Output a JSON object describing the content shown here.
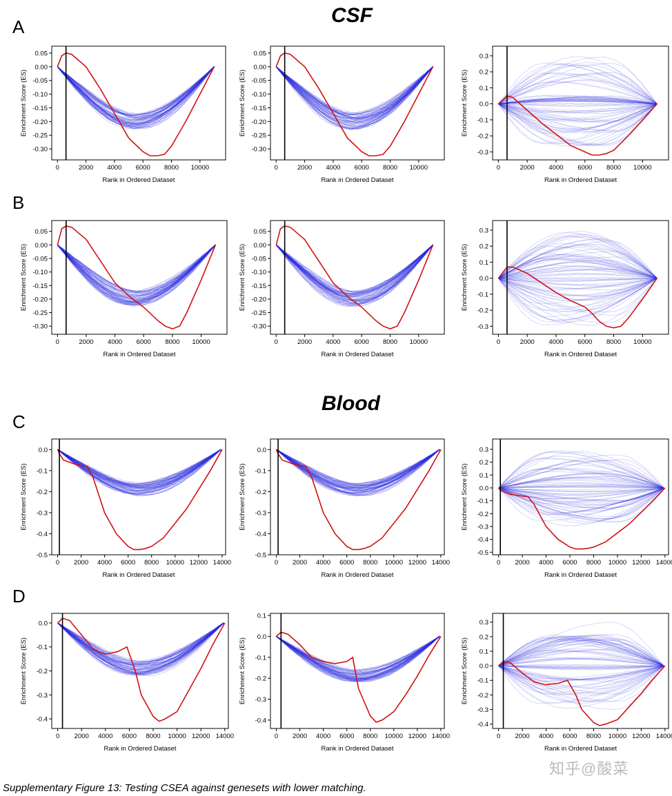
{
  "titles": {
    "csf": "CSF",
    "blood": "Blood"
  },
  "row_letters": [
    "A",
    "B",
    "C",
    "D"
  ],
  "watermark": "知乎@酸菜",
  "caption": "Supplementary Figure 13: Testing CSEA against genesets with lower matching.",
  "colors": {
    "red_line": "#d11010",
    "blue_lines": "#2a2ae0",
    "axes": "#000000"
  },
  "chart_data": [
    {
      "panel": "A1",
      "type": "line",
      "ylabel": "Enrichment Score (ES)",
      "xlabel": "Rank in Ordered Dataset",
      "xticks": [
        0,
        2000,
        4000,
        6000,
        8000,
        10000
      ],
      "yticks": [
        0.05,
        0.0,
        -0.05,
        -0.1,
        -0.15,
        -0.2,
        -0.25,
        -0.3
      ],
      "xlim": [
        -400,
        11800
      ],
      "ylim": [
        -0.34,
        0.075
      ],
      "vline_x": 600,
      "bg_trend": "down",
      "bg_count": 60,
      "series": [
        {
          "color": "red",
          "x": [
            0,
            300,
            600,
            1000,
            2000,
            3000,
            4000,
            5000,
            6000,
            6500,
            7000,
            7500,
            8000,
            9000,
            10000,
            11000
          ],
          "y": [
            0.0,
            0.04,
            0.05,
            0.045,
            0.0,
            -0.08,
            -0.17,
            -0.26,
            -0.31,
            -0.325,
            -0.325,
            -0.32,
            -0.29,
            -0.2,
            -0.1,
            0.0
          ]
        }
      ]
    },
    {
      "panel": "A2",
      "type": "line",
      "ylabel": "Enrichment Score (ES)",
      "xlabel": "Rank in Ordered Dataset",
      "xticks": [
        0,
        2000,
        4000,
        6000,
        8000,
        10000
      ],
      "yticks": [
        0.05,
        0.0,
        -0.05,
        -0.1,
        -0.15,
        -0.2,
        -0.25,
        -0.3
      ],
      "xlim": [
        -400,
        11800
      ],
      "ylim": [
        -0.34,
        0.075
      ],
      "vline_x": 600,
      "bg_trend": "down",
      "bg_count": 60,
      "series": [
        {
          "color": "red",
          "x": [
            0,
            300,
            600,
            1000,
            2000,
            3000,
            4000,
            5000,
            6000,
            6500,
            7000,
            7500,
            8000,
            9000,
            10000,
            11000
          ],
          "y": [
            0.0,
            0.04,
            0.05,
            0.045,
            0.0,
            -0.08,
            -0.17,
            -0.26,
            -0.31,
            -0.325,
            -0.325,
            -0.32,
            -0.29,
            -0.2,
            -0.1,
            0.0
          ]
        }
      ]
    },
    {
      "panel": "A3",
      "type": "line",
      "ylabel": "Enrichment Score (ES)",
      "xlabel": "Rank in Ordered Dataset",
      "xticks": [
        0,
        2000,
        4000,
        6000,
        8000,
        10000
      ],
      "yticks": [
        0.3,
        0.2,
        0.1,
        0.0,
        -0.1,
        -0.2,
        -0.3
      ],
      "xlim": [
        -400,
        11800
      ],
      "ylim": [
        -0.35,
        0.36
      ],
      "vline_x": 600,
      "bg_trend": "mixed",
      "bg_count": 80,
      "series": [
        {
          "color": "red",
          "x": [
            0,
            600,
            1000,
            2000,
            3000,
            4000,
            5000,
            6000,
            6500,
            7000,
            7500,
            8000,
            9000,
            10000,
            11000
          ],
          "y": [
            0.0,
            0.05,
            0.04,
            -0.04,
            -0.12,
            -0.19,
            -0.26,
            -0.3,
            -0.32,
            -0.32,
            -0.31,
            -0.29,
            -0.2,
            -0.1,
            0.0
          ]
        }
      ]
    },
    {
      "panel": "B1",
      "type": "line",
      "ylabel": "Enrichment Score (ES)",
      "xlabel": "Rank in Ordered Dataset",
      "xticks": [
        0,
        2000,
        4000,
        6000,
        8000,
        10000
      ],
      "yticks": [
        0.05,
        0.0,
        -0.05,
        -0.1,
        -0.15,
        -0.2,
        -0.25,
        -0.3
      ],
      "xlim": [
        -400,
        11800
      ],
      "ylim": [
        -0.33,
        0.09
      ],
      "vline_x": 600,
      "bg_trend": "down",
      "bg_count": 60,
      "series": [
        {
          "color": "red",
          "x": [
            0,
            300,
            600,
            1000,
            2000,
            3000,
            4000,
            5000,
            6000,
            7000,
            7500,
            8000,
            8500,
            9000,
            10000,
            11000
          ],
          "y": [
            0.0,
            0.06,
            0.07,
            0.065,
            0.02,
            -0.06,
            -0.14,
            -0.19,
            -0.23,
            -0.28,
            -0.3,
            -0.31,
            -0.3,
            -0.25,
            -0.13,
            0.0
          ]
        }
      ]
    },
    {
      "panel": "B2",
      "type": "line",
      "ylabel": "Enrichment Score (ES)",
      "xlabel": "Rank in Ordered Dataset",
      "xticks": [
        0,
        2000,
        4000,
        6000,
        8000,
        10000
      ],
      "yticks": [
        0.05,
        0.0,
        -0.05,
        -0.1,
        -0.15,
        -0.2,
        -0.25,
        -0.3
      ],
      "xlim": [
        -400,
        11800
      ],
      "ylim": [
        -0.33,
        0.09
      ],
      "vline_x": 600,
      "bg_trend": "down",
      "bg_count": 60,
      "series": [
        {
          "color": "red",
          "x": [
            0,
            300,
            600,
            1000,
            2000,
            3000,
            4000,
            5000,
            6000,
            7000,
            7500,
            8000,
            8500,
            9000,
            10000,
            11000
          ],
          "y": [
            0.0,
            0.06,
            0.07,
            0.065,
            0.02,
            -0.06,
            -0.14,
            -0.19,
            -0.23,
            -0.28,
            -0.3,
            -0.31,
            -0.3,
            -0.25,
            -0.13,
            0.0
          ]
        }
      ]
    },
    {
      "panel": "B3",
      "type": "line",
      "ylabel": "Enrichment Score (ES)",
      "xlabel": "Rank in Ordered Dataset",
      "xticks": [
        0,
        2000,
        4000,
        6000,
        8000,
        10000
      ],
      "yticks": [
        0.3,
        0.2,
        0.1,
        0.0,
        -0.1,
        -0.2,
        -0.3
      ],
      "xlim": [
        -400,
        11800
      ],
      "ylim": [
        -0.35,
        0.36
      ],
      "vline_x": 600,
      "bg_trend": "mixed",
      "bg_count": 80,
      "series": [
        {
          "color": "red",
          "x": [
            0,
            600,
            1000,
            2000,
            3000,
            4000,
            5000,
            6000,
            6500,
            7000,
            7500,
            8000,
            8500,
            9000,
            10000,
            11000
          ],
          "y": [
            0.0,
            0.07,
            0.07,
            0.03,
            -0.03,
            -0.09,
            -0.14,
            -0.18,
            -0.22,
            -0.27,
            -0.3,
            -0.31,
            -0.3,
            -0.25,
            -0.13,
            0.0
          ]
        }
      ]
    },
    {
      "panel": "C1",
      "type": "line",
      "ylabel": "Enrichment Score (ES)",
      "xlabel": "Rank in Ordered Dataset",
      "xticks": [
        0,
        2000,
        4000,
        6000,
        8000,
        10000,
        12000,
        14000
      ],
      "yticks": [
        0.0,
        -0.1,
        -0.2,
        -0.3,
        -0.4,
        -0.5
      ],
      "xlim": [
        -500,
        14300
      ],
      "ylim": [
        -0.5,
        0.05
      ],
      "vline_x": 150,
      "bg_trend": "down",
      "bg_count": 60,
      "series": [
        {
          "color": "red",
          "x": [
            0,
            150,
            500,
            1500,
            2500,
            3000,
            4000,
            5000,
            6000,
            6500,
            7000,
            7500,
            8000,
            9000,
            10000,
            11000,
            12000,
            13000,
            14000
          ],
          "y": [
            0.0,
            -0.02,
            -0.05,
            -0.07,
            -0.08,
            -0.13,
            -0.3,
            -0.4,
            -0.46,
            -0.475,
            -0.475,
            -0.47,
            -0.46,
            -0.42,
            -0.35,
            -0.28,
            -0.19,
            -0.1,
            0.0
          ]
        }
      ]
    },
    {
      "panel": "C2",
      "type": "line",
      "ylabel": "Enrichment Score (ES)",
      "xlabel": "Rank in Ordered Dataset",
      "xticks": [
        0,
        2000,
        4000,
        6000,
        8000,
        10000,
        12000,
        14000
      ],
      "yticks": [
        0.0,
        -0.1,
        -0.2,
        -0.3,
        -0.4,
        -0.5
      ],
      "xlim": [
        -500,
        14300
      ],
      "ylim": [
        -0.5,
        0.05
      ],
      "vline_x": 150,
      "bg_trend": "down",
      "bg_count": 60,
      "series": [
        {
          "color": "red",
          "x": [
            0,
            150,
            500,
            1500,
            2500,
            3000,
            4000,
            5000,
            6000,
            6500,
            7000,
            7500,
            8000,
            9000,
            10000,
            11000,
            12000,
            13000,
            14000
          ],
          "y": [
            0.0,
            -0.02,
            -0.05,
            -0.07,
            -0.08,
            -0.13,
            -0.3,
            -0.4,
            -0.46,
            -0.475,
            -0.475,
            -0.47,
            -0.46,
            -0.42,
            -0.35,
            -0.28,
            -0.19,
            -0.1,
            0.0
          ]
        }
      ]
    },
    {
      "panel": "C3",
      "type": "line",
      "ylabel": "Enrichment Score (ES)",
      "xlabel": "Rank in Ordered Dataset",
      "xticks": [
        0,
        2000,
        4000,
        6000,
        8000,
        10000,
        12000,
        14000
      ],
      "yticks": [
        0.3,
        0.2,
        0.1,
        0.0,
        -0.1,
        -0.2,
        -0.3,
        -0.4,
        -0.5
      ],
      "xlim": [
        -500,
        14300
      ],
      "ylim": [
        -0.52,
        0.38
      ],
      "vline_x": 150,
      "bg_trend": "mixed",
      "bg_count": 80,
      "series": [
        {
          "color": "red",
          "x": [
            0,
            150,
            1000,
            2500,
            3000,
            4000,
            5000,
            6000,
            6500,
            7000,
            7500,
            8000,
            9000,
            10000,
            11000,
            12000,
            13000,
            14000
          ],
          "y": [
            0.0,
            -0.02,
            -0.05,
            -0.07,
            -0.13,
            -0.3,
            -0.4,
            -0.46,
            -0.475,
            -0.475,
            -0.47,
            -0.46,
            -0.42,
            -0.35,
            -0.28,
            -0.19,
            -0.1,
            0.0
          ]
        }
      ]
    },
    {
      "panel": "D1",
      "type": "line",
      "ylabel": "Enrichment Score (ES)",
      "xlabel": "Rank in Ordered Dataset",
      "xticks": [
        0,
        2000,
        4000,
        6000,
        8000,
        10000,
        12000,
        14000
      ],
      "yticks": [
        0.0,
        -0.1,
        -0.2,
        -0.3,
        -0.4
      ],
      "xlim": [
        -500,
        14300
      ],
      "ylim": [
        -0.44,
        0.04
      ],
      "vline_x": 400,
      "bg_trend": "down",
      "bg_count": 60,
      "series": [
        {
          "color": "red",
          "x": [
            0,
            400,
            1000,
            2000,
            3000,
            4000,
            5000,
            5800,
            6500,
            7000,
            8000,
            8500,
            9000,
            10000,
            11000,
            12000,
            13000,
            14000
          ],
          "y": [
            0.0,
            0.02,
            0.01,
            -0.05,
            -0.11,
            -0.13,
            -0.12,
            -0.1,
            -0.2,
            -0.3,
            -0.39,
            -0.41,
            -0.4,
            -0.37,
            -0.28,
            -0.19,
            -0.09,
            0.0
          ]
        }
      ]
    },
    {
      "panel": "D2",
      "type": "line",
      "ylabel": "Enrichment Score (ES)",
      "xlabel": "Rank in Ordered Dataset",
      "xticks": [
        0,
        2000,
        4000,
        6000,
        8000,
        10000,
        12000,
        14000
      ],
      "yticks": [
        0.1,
        0.0,
        -0.1,
        -0.2,
        -0.3,
        -0.4
      ],
      "xlim": [
        -500,
        14300
      ],
      "ylim": [
        -0.44,
        0.11
      ],
      "vline_x": 400,
      "bg_trend": "down",
      "bg_count": 60,
      "series": [
        {
          "color": "red",
          "x": [
            0,
            400,
            1000,
            2000,
            3000,
            4000,
            5000,
            6000,
            6500,
            7000,
            8000,
            8500,
            9000,
            10000,
            11000,
            12000,
            13000,
            14000
          ],
          "y": [
            0.0,
            0.02,
            0.01,
            -0.04,
            -0.1,
            -0.12,
            -0.13,
            -0.12,
            -0.1,
            -0.25,
            -0.38,
            -0.41,
            -0.4,
            -0.36,
            -0.28,
            -0.19,
            -0.09,
            0.0
          ]
        }
      ]
    },
    {
      "panel": "D3",
      "type": "line",
      "ylabel": "Enrichment Score (ES)",
      "xlabel": "Rank in Ordered Dataset",
      "xticks": [
        0,
        2000,
        4000,
        6000,
        8000,
        10000,
        12000,
        14000
      ],
      "yticks": [
        0.3,
        0.2,
        0.1,
        0.0,
        -0.1,
        -0.2,
        -0.3,
        -0.4
      ],
      "xlim": [
        -500,
        14300
      ],
      "ylim": [
        -0.43,
        0.36
      ],
      "vline_x": 400,
      "bg_trend": "mixed",
      "bg_count": 80,
      "series": [
        {
          "color": "red",
          "x": [
            0,
            400,
            1000,
            2000,
            3000,
            4000,
            5000,
            5800,
            6500,
            7000,
            8000,
            8500,
            9000,
            10000,
            11000,
            12000,
            13000,
            14000
          ],
          "y": [
            0.0,
            0.03,
            0.02,
            -0.05,
            -0.11,
            -0.13,
            -0.12,
            -0.1,
            -0.2,
            -0.3,
            -0.39,
            -0.41,
            -0.4,
            -0.37,
            -0.28,
            -0.19,
            -0.09,
            0.0
          ]
        }
      ]
    }
  ]
}
